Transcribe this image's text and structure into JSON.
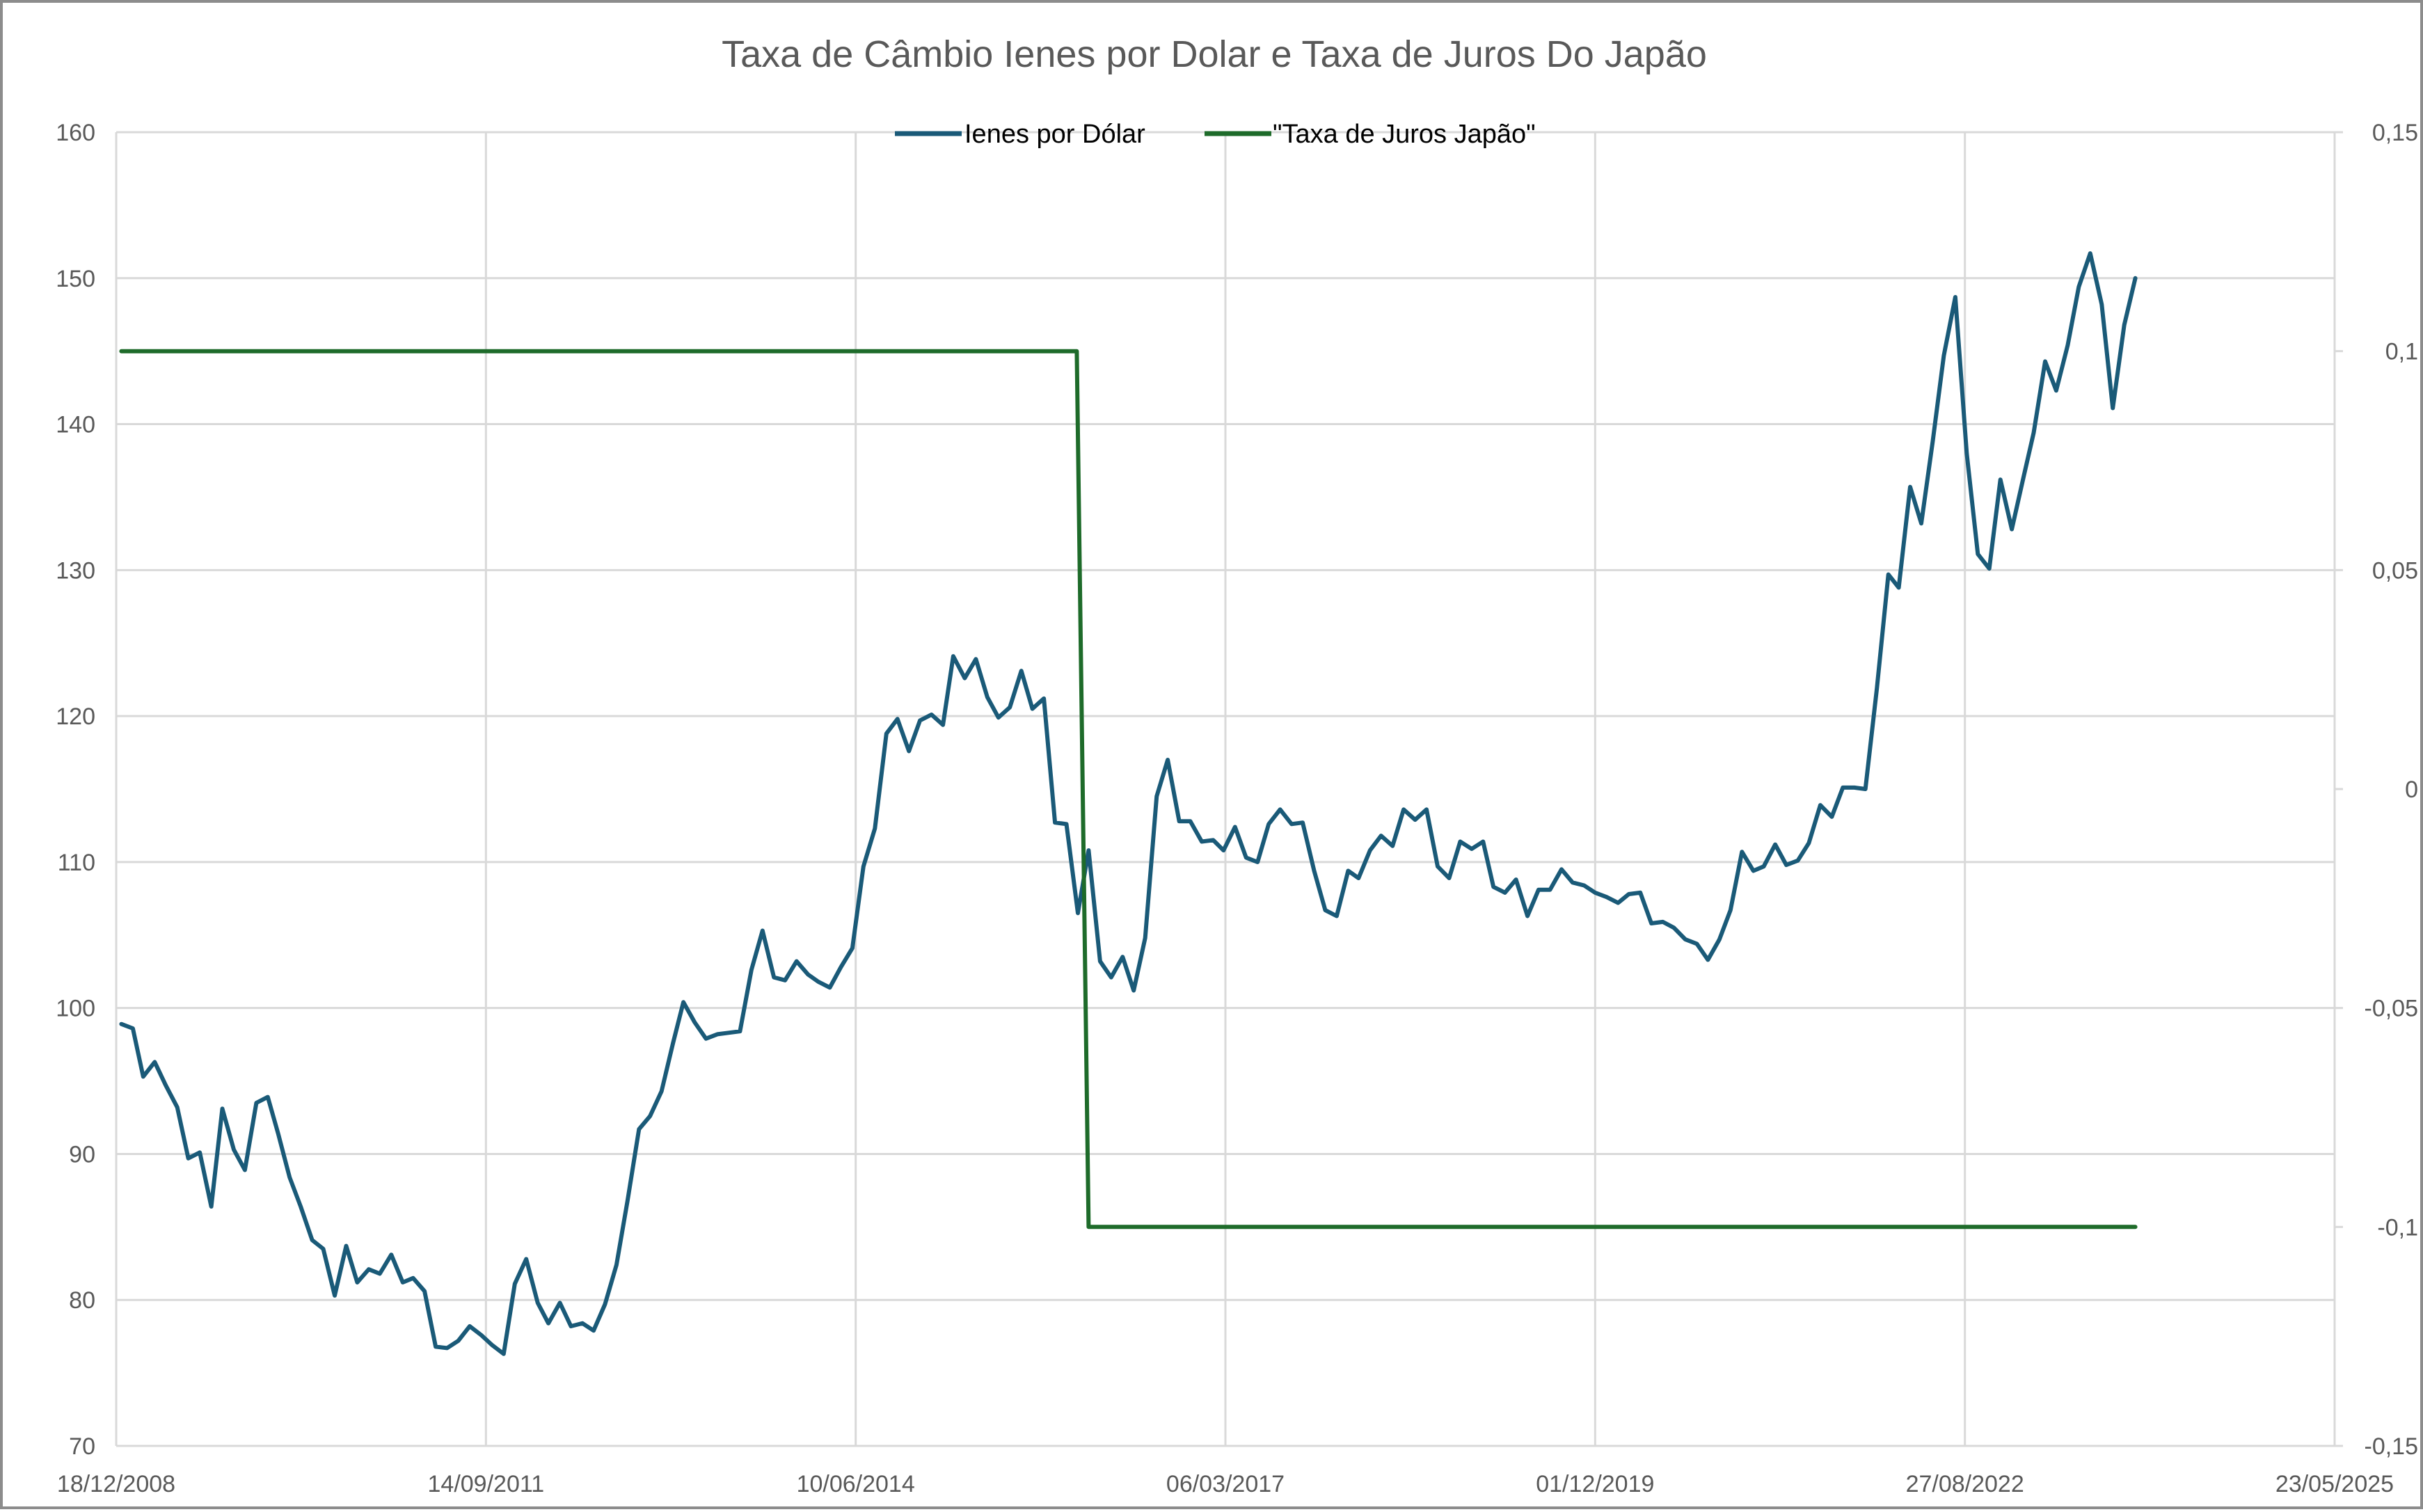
{
  "chart_data": {
    "type": "line",
    "title": "Taxa de Câmbio Ienes por Dolar e Taxa de Juros Do Japão",
    "xlabel": "",
    "ylabel": "",
    "x_ticks": [
      "18/12/2008",
      "14/09/2011",
      "10/06/2014",
      "06/03/2017",
      "01/12/2019",
      "27/08/2022",
      "23/05/2025"
    ],
    "y_left_ticks": [
      "70",
      "80",
      "90",
      "100",
      "110",
      "120",
      "130",
      "140",
      "150",
      "160"
    ],
    "y_right_ticks": [
      "-0,15",
      "-0,1",
      "-0,05",
      "0",
      "0,05",
      "0,1",
      "0,15"
    ],
    "x_range": [
      "2008-12-18",
      "2025-05-23"
    ],
    "ylim_left": [
      70,
      160
    ],
    "ylim_right": [
      -0.15,
      0.15
    ],
    "grid": true,
    "legend_position": "top-center",
    "series": [
      {
        "name": "Ienes por Dólar",
        "axis": "left",
        "color": "#1a5a78",
        "points": [
          [
            "2009-01-01",
            98.9
          ],
          [
            "2009-02-01",
            98.6
          ],
          [
            "2009-03-01",
            95.3
          ],
          [
            "2009-04-01",
            96.3
          ],
          [
            "2009-05-01",
            94.7
          ],
          [
            "2009-06-01",
            93.2
          ],
          [
            "2009-07-01",
            89.7
          ],
          [
            "2009-08-01",
            90.1
          ],
          [
            "2009-09-01",
            86.4
          ],
          [
            "2009-10-01",
            93.1
          ],
          [
            "2009-11-01",
            90.3
          ],
          [
            "2009-12-01",
            88.9
          ],
          [
            "2010-01-01",
            93.5
          ],
          [
            "2010-02-01",
            93.9
          ],
          [
            "2010-03-01",
            91.4
          ],
          [
            "2010-04-01",
            88.4
          ],
          [
            "2010-05-01",
            86.4
          ],
          [
            "2010-06-01",
            84.1
          ],
          [
            "2010-07-01",
            83.5
          ],
          [
            "2010-08-01",
            80.3
          ],
          [
            "2010-09-01",
            83.7
          ],
          [
            "2010-10-01",
            81.2
          ],
          [
            "2010-11-01",
            82.1
          ],
          [
            "2010-12-01",
            81.8
          ],
          [
            "2011-01-01",
            83.1
          ],
          [
            "2011-02-01",
            81.2
          ],
          [
            "2011-03-01",
            81.5
          ],
          [
            "2011-04-01",
            80.6
          ],
          [
            "2011-05-01",
            76.8
          ],
          [
            "2011-06-01",
            76.7
          ],
          [
            "2011-07-01",
            77.2
          ],
          [
            "2011-08-01",
            78.2
          ],
          [
            "2011-09-01",
            77.6
          ],
          [
            "2011-10-01",
            76.9
          ],
          [
            "2011-11-01",
            76.3
          ],
          [
            "2011-12-01",
            81.1
          ],
          [
            "2012-01-01",
            82.8
          ],
          [
            "2012-02-01",
            79.8
          ],
          [
            "2012-03-01",
            78.4
          ],
          [
            "2012-04-01",
            79.8
          ],
          [
            "2012-05-01",
            78.2
          ],
          [
            "2012-06-01",
            78.4
          ],
          [
            "2012-07-01",
            77.9
          ],
          [
            "2012-08-01",
            79.7
          ],
          [
            "2012-09-01",
            82.4
          ],
          [
            "2012-10-01",
            86.8
          ],
          [
            "2012-11-01",
            91.7
          ],
          [
            "2012-12-01",
            92.6
          ],
          [
            "2013-01-01",
            94.3
          ],
          [
            "2013-02-01",
            97.6
          ],
          [
            "2013-03-01",
            100.4
          ],
          [
            "2013-04-01",
            99.0
          ],
          [
            "2013-05-01",
            97.9
          ],
          [
            "2013-06-01",
            98.2
          ],
          [
            "2013-07-01",
            98.3
          ],
          [
            "2013-08-01",
            98.4
          ],
          [
            "2013-09-01",
            102.6
          ],
          [
            "2013-10-01",
            105.3
          ],
          [
            "2013-11-01",
            102.1
          ],
          [
            "2013-12-01",
            101.9
          ],
          [
            "2014-01-01",
            103.2
          ],
          [
            "2014-02-01",
            102.3
          ],
          [
            "2014-03-01",
            101.8
          ],
          [
            "2014-04-01",
            101.4
          ],
          [
            "2014-05-01",
            102.8
          ],
          [
            "2014-06-01",
            104.1
          ],
          [
            "2014-07-01",
            109.7
          ],
          [
            "2014-08-01",
            112.3
          ],
          [
            "2014-09-01",
            118.8
          ],
          [
            "2014-10-01",
            119.8
          ],
          [
            "2014-11-01",
            117.6
          ],
          [
            "2014-12-01",
            119.7
          ],
          [
            "2015-01-01",
            120.1
          ],
          [
            "2015-02-01",
            119.4
          ],
          [
            "2015-03-01",
            124.1
          ],
          [
            "2015-04-01",
            122.6
          ],
          [
            "2015-05-01",
            123.9
          ],
          [
            "2015-06-01",
            121.3
          ],
          [
            "2015-07-01",
            119.9
          ],
          [
            "2015-08-01",
            120.6
          ],
          [
            "2015-09-01",
            123.1
          ],
          [
            "2015-10-01",
            120.5
          ],
          [
            "2015-11-01",
            121.2
          ],
          [
            "2015-12-01",
            112.7
          ],
          [
            "2016-01-01",
            112.6
          ],
          [
            "2016-02-01",
            106.5
          ],
          [
            "2016-03-01",
            110.8
          ],
          [
            "2016-04-01",
            103.2
          ],
          [
            "2016-05-01",
            102.1
          ],
          [
            "2016-06-01",
            103.5
          ],
          [
            "2016-07-01",
            101.2
          ],
          [
            "2016-08-01",
            104.8
          ],
          [
            "2016-09-01",
            114.5
          ],
          [
            "2016-10-01",
            117.0
          ],
          [
            "2016-11-01",
            112.8
          ],
          [
            "2016-12-01",
            112.8
          ],
          [
            "2017-01-01",
            111.4
          ],
          [
            "2017-02-01",
            111.5
          ],
          [
            "2017-03-01",
            110.8
          ],
          [
            "2017-04-01",
            112.4
          ],
          [
            "2017-05-01",
            110.3
          ],
          [
            "2017-06-01",
            110.0
          ],
          [
            "2017-07-01",
            112.6
          ],
          [
            "2017-08-01",
            113.6
          ],
          [
            "2017-09-01",
            112.6
          ],
          [
            "2017-10-01",
            112.7
          ],
          [
            "2017-11-01",
            109.4
          ],
          [
            "2017-12-01",
            106.7
          ],
          [
            "2018-01-01",
            106.3
          ],
          [
            "2018-02-01",
            109.4
          ],
          [
            "2018-03-01",
            108.9
          ],
          [
            "2018-04-01",
            110.8
          ],
          [
            "2018-05-01",
            111.8
          ],
          [
            "2018-06-01",
            111.1
          ],
          [
            "2018-07-01",
            113.6
          ],
          [
            "2018-08-01",
            112.9
          ],
          [
            "2018-09-01",
            113.6
          ],
          [
            "2018-10-01",
            109.7
          ],
          [
            "2018-11-01",
            108.9
          ],
          [
            "2018-12-01",
            111.4
          ],
          [
            "2019-01-01",
            110.9
          ],
          [
            "2019-02-01",
            111.4
          ],
          [
            "2019-03-01",
            108.3
          ],
          [
            "2019-04-01",
            107.9
          ],
          [
            "2019-05-01",
            108.8
          ],
          [
            "2019-06-01",
            106.3
          ],
          [
            "2019-07-01",
            108.1
          ],
          [
            "2019-08-01",
            108.1
          ],
          [
            "2019-09-01",
            109.5
          ],
          [
            "2019-10-01",
            108.6
          ],
          [
            "2019-11-01",
            108.4
          ],
          [
            "2019-12-01",
            107.9
          ],
          [
            "2020-01-01",
            107.6
          ],
          [
            "2020-02-01",
            107.2
          ],
          [
            "2020-03-01",
            107.8
          ],
          [
            "2020-04-01",
            107.9
          ],
          [
            "2020-05-01",
            105.8
          ],
          [
            "2020-06-01",
            105.9
          ],
          [
            "2020-07-01",
            105.5
          ],
          [
            "2020-08-01",
            104.7
          ],
          [
            "2020-09-01",
            104.4
          ],
          [
            "2020-10-01",
            103.3
          ],
          [
            "2020-11-01",
            104.7
          ],
          [
            "2020-12-01",
            106.7
          ],
          [
            "2021-01-01",
            110.7
          ],
          [
            "2021-02-01",
            109.4
          ],
          [
            "2021-03-01",
            109.7
          ],
          [
            "2021-04-01",
            111.2
          ],
          [
            "2021-05-01",
            109.8
          ],
          [
            "2021-06-01",
            110.1
          ],
          [
            "2021-07-01",
            111.3
          ],
          [
            "2021-08-01",
            113.9
          ],
          [
            "2021-09-01",
            113.1
          ],
          [
            "2021-10-01",
            115.1
          ],
          [
            "2021-11-01",
            115.1
          ],
          [
            "2021-12-01",
            115.0
          ],
          [
            "2022-01-01",
            121.9
          ],
          [
            "2022-02-01",
            129.7
          ],
          [
            "2022-03-01",
            128.8
          ],
          [
            "2022-04-01",
            135.7
          ],
          [
            "2022-05-01",
            133.2
          ],
          [
            "2022-06-01",
            138.8
          ],
          [
            "2022-07-01",
            144.7
          ],
          [
            "2022-08-01",
            148.7
          ],
          [
            "2022-09-01",
            138.0
          ],
          [
            "2022-10-01",
            131.1
          ],
          [
            "2022-11-01",
            130.1
          ],
          [
            "2022-12-01",
            136.2
          ],
          [
            "2023-01-01",
            132.8
          ],
          [
            "2023-02-01",
            136.3
          ],
          [
            "2023-03-01",
            139.4
          ],
          [
            "2023-04-01",
            144.3
          ],
          [
            "2023-05-01",
            142.3
          ],
          [
            "2023-06-01",
            145.4
          ],
          [
            "2023-07-01",
            149.4
          ],
          [
            "2023-08-01",
            151.7
          ],
          [
            "2023-09-01",
            148.2
          ],
          [
            "2023-10-01",
            141.1
          ],
          [
            "2023-11-01",
            146.8
          ],
          [
            "2023-12-01",
            150.0
          ]
        ]
      },
      {
        "name": "\"Taxa de Juros Japão\"",
        "axis": "right",
        "color": "#1e6b2a",
        "points": [
          [
            "2009-01-01",
            0.1
          ],
          [
            "2016-01-29",
            0.1
          ],
          [
            "2016-03-01",
            -0.1
          ],
          [
            "2023-12-01",
            -0.1
          ]
        ]
      }
    ]
  }
}
